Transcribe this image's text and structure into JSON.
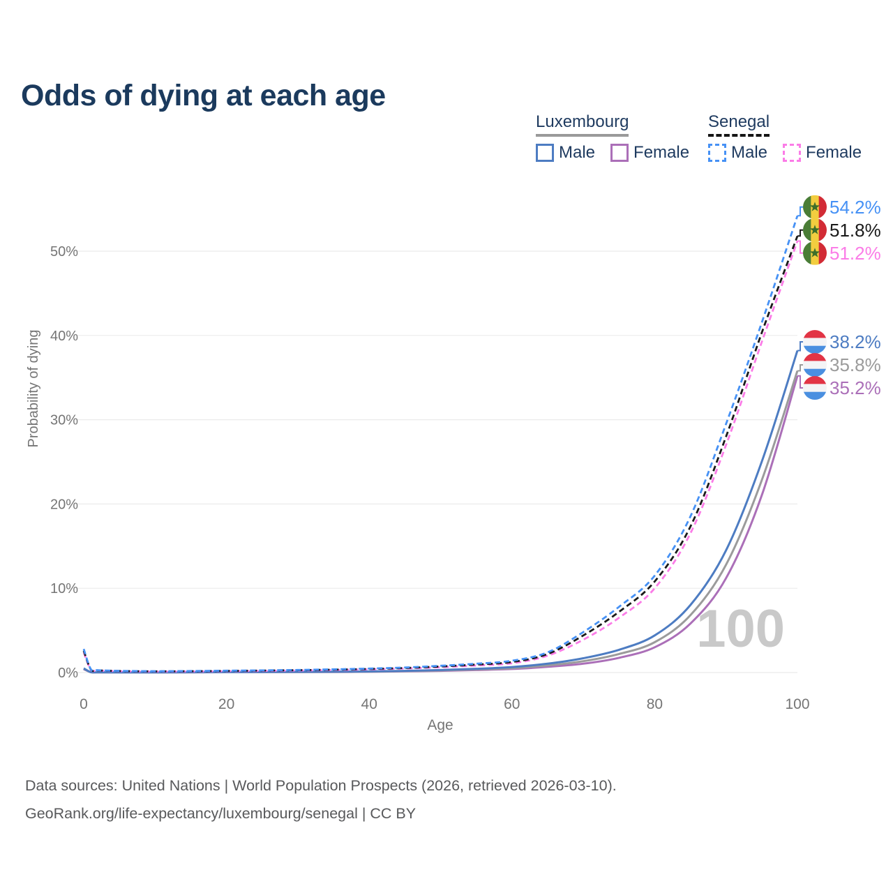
{
  "title": "Odds of dying at each age",
  "watermark": {
    "text": "100"
  },
  "footer": {
    "line1": "Data sources: United Nations | World Population Prospects (2026, retrieved 2026-03-10).",
    "line2": "GeoRank.org/life-expectancy/luxembourg/senegal | CC BY"
  },
  "theme": {
    "title_color": "#1b3a5d",
    "legend_text_color": "#1e3a5f",
    "axis_text_color": "#757575",
    "gridline_color": "#ebebeb",
    "footer_text_color": "#58595b",
    "watermark_color": "#c9c9c9"
  },
  "legend": {
    "groups": [
      {
        "slug": "luxembourg",
        "name": "Luxembourg",
        "line_style": "solid",
        "line_color": "#9a9a9a",
        "items": [
          {
            "slug": "male",
            "label": "Male",
            "color": "#4d7cc2"
          },
          {
            "slug": "female",
            "label": "Female",
            "color": "#ab6fb8"
          }
        ]
      },
      {
        "slug": "senegal",
        "name": "Senegal",
        "line_style": "dashed",
        "line_color": "#151515",
        "items": [
          {
            "slug": "male",
            "label": "Male",
            "color": "#4691f5"
          },
          {
            "slug": "female",
            "label": "Female",
            "color": "#fb7ce7"
          }
        ]
      }
    ]
  },
  "flags": {
    "senegal": {
      "type": "vertical",
      "colors": [
        "#4a7d36",
        "#f2cd3f",
        "#d22b35"
      ],
      "star_color": "#3e6e2a"
    },
    "luxembourg": {
      "type": "horizontal",
      "colors": [
        "#e23445",
        "#f4f4f6",
        "#4a8fe0"
      ]
    }
  },
  "chart_data": {
    "type": "line",
    "title": "Odds of dying at each age",
    "xlabel": "Age",
    "ylabel": "Probability of dying",
    "xlim": [
      0,
      100
    ],
    "ylim": [
      0,
      56
    ],
    "grid": "horizontal",
    "legend_position": "top-right",
    "xticks": [
      {
        "value": 0,
        "label": "0"
      },
      {
        "value": 20,
        "label": "20"
      },
      {
        "value": 40,
        "label": "40"
      },
      {
        "value": 60,
        "label": "60"
      },
      {
        "value": 80,
        "label": "80"
      },
      {
        "value": 100,
        "label": "100"
      }
    ],
    "yticks": [
      {
        "value": 0,
        "label": "0%"
      },
      {
        "value": 10,
        "label": "10%"
      },
      {
        "value": 20,
        "label": "20%"
      },
      {
        "value": 30,
        "label": "30%"
      },
      {
        "value": 40,
        "label": "40%"
      },
      {
        "value": 50,
        "label": "50%"
      }
    ],
    "x": [
      0,
      1,
      2,
      5,
      10,
      15,
      20,
      25,
      30,
      35,
      40,
      45,
      50,
      55,
      60,
      65,
      70,
      75,
      80,
      85,
      90,
      95,
      100
    ],
    "series": [
      {
        "id": "luxembourg-female",
        "country": "luxembourg",
        "sex": "female",
        "dashed": false,
        "color": "#ab6fb8",
        "width": 3,
        "end_label": "35.2%",
        "values": [
          0.4,
          0.04,
          0.02,
          0.015,
          0.015,
          0.025,
          0.04,
          0.05,
          0.055,
          0.07,
          0.09,
          0.14,
          0.2,
          0.3,
          0.42,
          0.68,
          1.05,
          1.75,
          3.0,
          5.8,
          11.2,
          21.0,
          35.2
        ]
      },
      {
        "id": "luxembourg-both",
        "country": "luxembourg",
        "sex": "both",
        "dashed": false,
        "color": "#9b9b9b",
        "width": 3,
        "end_label": "35.8%",
        "values": [
          0.45,
          0.045,
          0.025,
          0.018,
          0.018,
          0.03,
          0.05,
          0.06,
          0.07,
          0.085,
          0.11,
          0.17,
          0.25,
          0.37,
          0.52,
          0.85,
          1.35,
          2.2,
          3.6,
          6.8,
          12.8,
          22.8,
          35.8
        ]
      },
      {
        "id": "luxembourg-male",
        "country": "luxembourg",
        "sex": "male",
        "dashed": false,
        "color": "#4d7cc2",
        "width": 3,
        "end_label": "38.2%",
        "values": [
          0.5,
          0.05,
          0.03,
          0.02,
          0.02,
          0.04,
          0.06,
          0.07,
          0.08,
          0.1,
          0.13,
          0.2,
          0.3,
          0.45,
          0.65,
          1.05,
          1.7,
          2.7,
          4.4,
          8.0,
          14.5,
          25.0,
          38.2
        ]
      },
      {
        "id": "senegal-female",
        "country": "senegal",
        "sex": "female",
        "dashed": true,
        "color": "#fb7ce7",
        "width": 2.8,
        "end_label": "51.2%",
        "values": [
          2.4,
          0.34,
          0.24,
          0.16,
          0.12,
          0.13,
          0.16,
          0.19,
          0.24,
          0.3,
          0.37,
          0.48,
          0.63,
          0.84,
          1.1,
          2.0,
          3.9,
          6.5,
          10.0,
          16.5,
          27.0,
          39.2,
          51.2
        ]
      },
      {
        "id": "senegal-both",
        "country": "senegal",
        "sex": "both",
        "dashed": true,
        "color": "#1a1a1a",
        "width": 2.8,
        "end_label": "51.8%",
        "values": [
          2.6,
          0.37,
          0.26,
          0.18,
          0.14,
          0.16,
          0.19,
          0.23,
          0.28,
          0.34,
          0.42,
          0.54,
          0.72,
          0.95,
          1.25,
          2.2,
          4.4,
          7.2,
          10.8,
          17.3,
          28.0,
          40.3,
          51.8
        ]
      },
      {
        "id": "senegal-male",
        "country": "senegal",
        "sex": "male",
        "dashed": true,
        "color": "#4691f5",
        "width": 2.8,
        "end_label": "54.2%",
        "values": [
          2.8,
          0.4,
          0.28,
          0.2,
          0.16,
          0.18,
          0.22,
          0.26,
          0.31,
          0.38,
          0.47,
          0.6,
          0.8,
          1.05,
          1.4,
          2.4,
          4.8,
          7.8,
          11.5,
          18.5,
          29.5,
          41.5,
          54.2
        ]
      }
    ]
  }
}
